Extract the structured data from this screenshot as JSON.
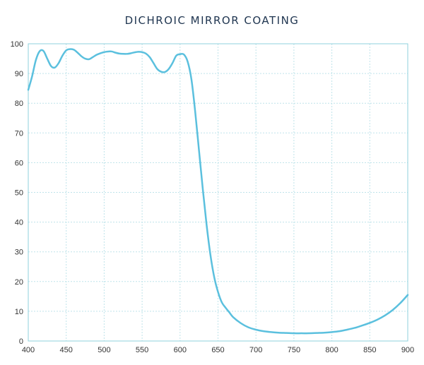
{
  "chart_data": {
    "type": "line",
    "title": "DICHROIC MIRROR COATING",
    "xlabel": "",
    "ylabel": "",
    "xlim": [
      400,
      900
    ],
    "ylim": [
      0,
      100
    ],
    "x_ticks": [
      400,
      450,
      500,
      550,
      600,
      650,
      700,
      750,
      800,
      850,
      900
    ],
    "y_ticks": [
      0,
      10,
      20,
      30,
      40,
      50,
      60,
      70,
      80,
      90,
      100
    ],
    "grid": true,
    "legend": "none",
    "series": [
      {
        "color": "#5bc0de",
        "points": [
          [
            400,
            84.5
          ],
          [
            405,
            89
          ],
          [
            410,
            94.5
          ],
          [
            415,
            97.5
          ],
          [
            420,
            97.6
          ],
          [
            425,
            95
          ],
          [
            430,
            92.5
          ],
          [
            435,
            92
          ],
          [
            440,
            93.5
          ],
          [
            445,
            96
          ],
          [
            450,
            97.8
          ],
          [
            455,
            98.2
          ],
          [
            460,
            98
          ],
          [
            465,
            97
          ],
          [
            470,
            95.8
          ],
          [
            475,
            95
          ],
          [
            480,
            94.8
          ],
          [
            485,
            95.5
          ],
          [
            490,
            96.3
          ],
          [
            495,
            96.8
          ],
          [
            500,
            97.2
          ],
          [
            505,
            97.4
          ],
          [
            510,
            97.4
          ],
          [
            515,
            97
          ],
          [
            520,
            96.7
          ],
          [
            525,
            96.6
          ],
          [
            530,
            96.6
          ],
          [
            535,
            96.8
          ],
          [
            540,
            97.1
          ],
          [
            545,
            97.3
          ],
          [
            550,
            97.2
          ],
          [
            555,
            96.7
          ],
          [
            560,
            95.5
          ],
          [
            565,
            93.5
          ],
          [
            570,
            91.5
          ],
          [
            575,
            90.6
          ],
          [
            580,
            90.5
          ],
          [
            585,
            91.5
          ],
          [
            590,
            93.5
          ],
          [
            595,
            96
          ],
          [
            600,
            96.5
          ],
          [
            605,
            96.4
          ],
          [
            610,
            94
          ],
          [
            615,
            88
          ],
          [
            620,
            77
          ],
          [
            625,
            64
          ],
          [
            630,
            51
          ],
          [
            635,
            39
          ],
          [
            640,
            29
          ],
          [
            645,
            21.5
          ],
          [
            650,
            16.5
          ],
          [
            655,
            13
          ],
          [
            660,
            11.2
          ],
          [
            665,
            9.6
          ],
          [
            670,
            8
          ],
          [
            680,
            6
          ],
          [
            690,
            4.6
          ],
          [
            700,
            3.8
          ],
          [
            710,
            3.3
          ],
          [
            720,
            3
          ],
          [
            730,
            2.8
          ],
          [
            740,
            2.7
          ],
          [
            750,
            2.6
          ],
          [
            760,
            2.6
          ],
          [
            770,
            2.6
          ],
          [
            780,
            2.7
          ],
          [
            790,
            2.8
          ],
          [
            800,
            3
          ],
          [
            810,
            3.3
          ],
          [
            820,
            3.8
          ],
          [
            830,
            4.4
          ],
          [
            840,
            5.2
          ],
          [
            850,
            6.1
          ],
          [
            860,
            7.2
          ],
          [
            870,
            8.6
          ],
          [
            880,
            10.4
          ],
          [
            890,
            12.7
          ],
          [
            900,
            15.5
          ]
        ]
      }
    ]
  }
}
